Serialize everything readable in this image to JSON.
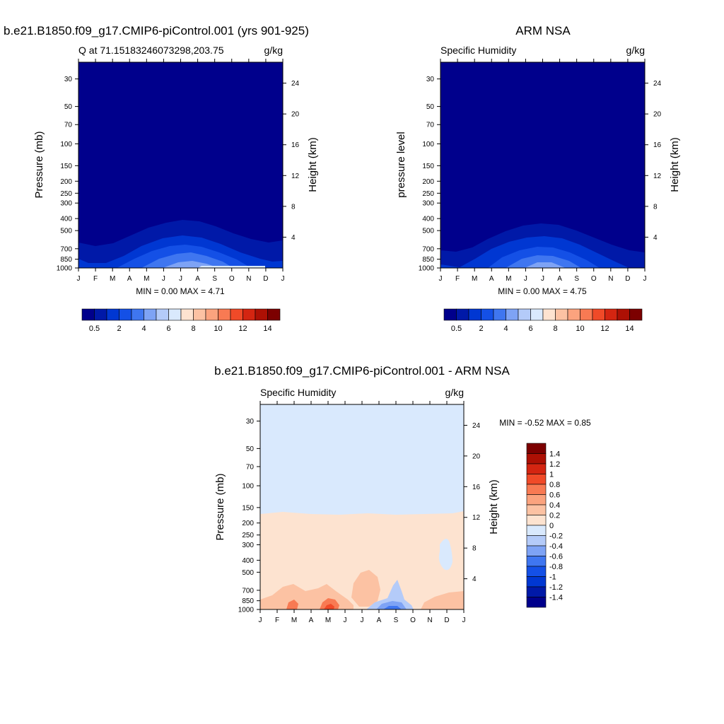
{
  "chart_data": [
    {
      "type": "heatmap",
      "title": "b.e21.B1850.f09_g17.CMIP6-piControl.001 (yrs 901-925)",
      "left_subtitle": "Q at 71.15183246073298,203.75",
      "right_subtitle": "g/kg",
      "ylabel": "Pressure (mb)",
      "ylabel_right": "Height (km)",
      "pressure_ticks": [
        "30",
        "50",
        "70",
        "100",
        "150",
        "200",
        "250",
        "300",
        "400",
        "500",
        "700",
        "850",
        "1000"
      ],
      "height_ticks": [
        "24",
        "20",
        "16",
        "12",
        "8",
        "4"
      ],
      "x": [
        "J",
        "F",
        "M",
        "A",
        "M",
        "J",
        "J",
        "A",
        "S",
        "O",
        "N",
        "D",
        "J"
      ],
      "minmax": "MIN =   0.00 MAX =   4.71",
      "min": 0.0,
      "max": 4.71,
      "colorbar_labels": [
        "0.5",
        "2",
        "4",
        "6",
        "8",
        "10",
        "12",
        "14"
      ],
      "colorbar_colors": [
        "#00008c",
        "#0019a8",
        "#0037d2",
        "#1450e6",
        "#3f76f0",
        "#7ea3f5",
        "#b4cbf9",
        "#d9e9fd",
        "#fde3d0",
        "#fcc2a3",
        "#fba37e",
        "#f87a53",
        "#f04a28",
        "#d42511",
        "#ad1004",
        "#7c0000"
      ],
      "ylim": [
        1000,
        22
      ]
    },
    {
      "type": "heatmap",
      "title": "ARM NSA",
      "left_subtitle": "Specific Humidity",
      "right_subtitle": "g/kg",
      "ylabel": "pressure level",
      "ylabel_right": "Height (km)",
      "pressure_ticks": [
        "30",
        "50",
        "70",
        "100",
        "150",
        "200",
        "250",
        "300",
        "400",
        "500",
        "700",
        "850",
        "1000"
      ],
      "height_ticks": [
        "24",
        "20",
        "16",
        "12",
        "8",
        "4"
      ],
      "x": [
        "J",
        "F",
        "M",
        "A",
        "M",
        "J",
        "J",
        "A",
        "S",
        "O",
        "N",
        "D",
        "J"
      ],
      "minmax": "MIN =   0.00 MAX =   4.75",
      "min": 0.0,
      "max": 4.75,
      "colorbar_labels": [
        "0.5",
        "2",
        "4",
        "6",
        "8",
        "10",
        "12",
        "14"
      ],
      "colorbar_colors": [
        "#00008c",
        "#0019a8",
        "#0037d2",
        "#1450e6",
        "#3f76f0",
        "#7ea3f5",
        "#b4cbf9",
        "#d9e9fd",
        "#fde3d0",
        "#fcc2a3",
        "#fba37e",
        "#f87a53",
        "#f04a28",
        "#d42511",
        "#ad1004",
        "#7c0000"
      ],
      "ylim": [
        1000,
        22
      ]
    },
    {
      "type": "heatmap",
      "title": "b.e21.B1850.f09_g17.CMIP6-piControl.001 - ARM NSA",
      "left_subtitle": "Specific Humidity",
      "right_subtitle": "g/kg",
      "ylabel": "Pressure (mb)",
      "ylabel_right": "Height (km)",
      "pressure_ticks": [
        "30",
        "50",
        "70",
        "100",
        "150",
        "200",
        "250",
        "300",
        "400",
        "500",
        "700",
        "850",
        "1000"
      ],
      "height_ticks": [
        "24",
        "20",
        "16",
        "12",
        "8",
        "4"
      ],
      "x": [
        "J",
        "F",
        "M",
        "A",
        "M",
        "J",
        "J",
        "A",
        "S",
        "O",
        "N",
        "D",
        "J"
      ],
      "minmax": "MIN =  -0.52 MAX =   0.85",
      "min": -0.52,
      "max": 0.85,
      "colorbar_labels": [
        "1.4",
        "1.2",
        "1",
        "0.8",
        "0.6",
        "0.4",
        "0.2",
        "0",
        "-0.2",
        "-0.4",
        "-0.6",
        "-0.8",
        "-1",
        "-1.2",
        "-1.4"
      ],
      "colorbar_colors": [
        "#7c0000",
        "#ad1004",
        "#d42511",
        "#f04a28",
        "#f87a53",
        "#fba37e",
        "#fcc2a3",
        "#fde3d0",
        "#d9e9fd",
        "#b4cbf9",
        "#7ea3f5",
        "#3f76f0",
        "#1450e6",
        "#0037d2",
        "#0019a8",
        "#00008c"
      ],
      "ylim": [
        1000,
        22
      ]
    }
  ]
}
